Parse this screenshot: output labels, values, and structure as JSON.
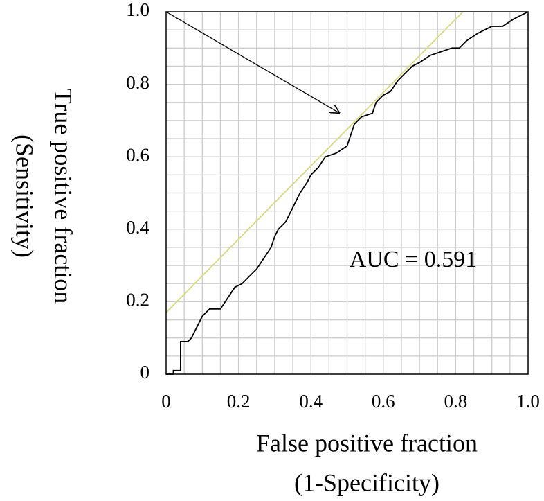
{
  "chart_data": {
    "type": "line",
    "xlabel": [
      "False positive fraction",
      "(1-Specificity)"
    ],
    "ylabel": [
      "True positive fraction",
      "(Sensitivity)"
    ],
    "annotation": "AUC = 0.591",
    "xlim": [
      0,
      1
    ],
    "ylim": [
      0,
      1
    ],
    "xticks": [
      0,
      0.2,
      0.4,
      0.6,
      0.8,
      {
        "value": 1,
        "label": "1.0"
      }
    ],
    "yticks": [
      0,
      0.2,
      0.4,
      0.6,
      0.8,
      {
        "value": 1,
        "label": "1.0"
      }
    ],
    "grid": true,
    "grid_step": 0.05,
    "arrow": {
      "from": [
        0,
        1
      ],
      "to": [
        0.48,
        0.72
      ],
      "color": "#000000"
    },
    "series": [
      {
        "color": "#000000",
        "x": [
          0,
          0.02,
          0.02,
          0.04,
          0.04,
          0.06,
          0.07,
          0.08,
          0.1,
          0.12,
          0.15,
          0.17,
          0.19,
          0.21,
          0.23,
          0.25,
          0.27,
          0.29,
          0.3,
          0.31,
          0.33,
          0.35,
          0.37,
          0.39,
          0.4,
          0.42,
          0.44,
          0.47,
          0.5,
          0.51,
          0.52,
          0.54,
          0.57,
          0.58,
          0.6,
          0.62,
          0.64,
          0.66,
          0.68,
          0.7,
          0.73,
          0.76,
          0.79,
          0.81,
          0.83,
          0.86,
          0.9,
          0.93,
          0.96,
          0.98,
          1
        ],
        "values": [
          0,
          0,
          0.01,
          0.01,
          0.09,
          0.09,
          0.1,
          0.12,
          0.16,
          0.18,
          0.18,
          0.21,
          0.24,
          0.25,
          0.27,
          0.29,
          0.32,
          0.35,
          0.38,
          0.4,
          0.42,
          0.46,
          0.5,
          0.53,
          0.55,
          0.57,
          0.6,
          0.61,
          0.63,
          0.66,
          0.69,
          0.71,
          0.72,
          0.75,
          0.77,
          0.78,
          0.81,
          0.83,
          0.85,
          0.86,
          0.88,
          0.89,
          0.9,
          0.9,
          0.92,
          0.94,
          0.96,
          0.96,
          0.98,
          0.99,
          1
        ]
      },
      {
        "color": "#d8d878",
        "x": [
          0,
          0.82
        ],
        "values": [
          0.17,
          1
        ]
      }
    ]
  }
}
